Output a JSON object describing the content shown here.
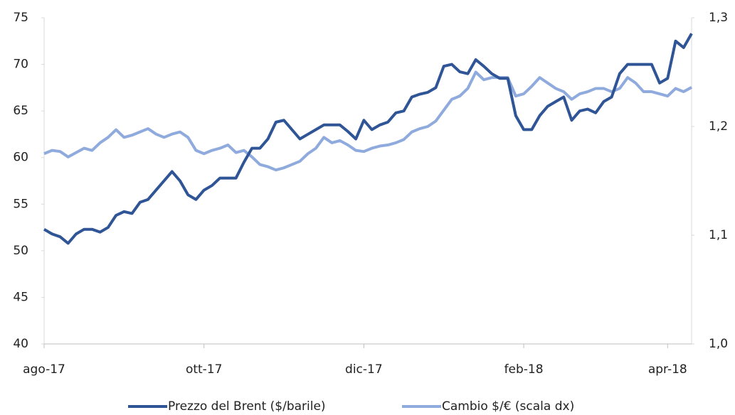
{
  "chart_data": {
    "type": "line",
    "categories": [
      "ago-17",
      null,
      null,
      null,
      null,
      null,
      null,
      null,
      null,
      null,
      null,
      null,
      null,
      null,
      null,
      null,
      null,
      null,
      null,
      null,
      "ott-17",
      null,
      null,
      null,
      null,
      null,
      null,
      null,
      null,
      null,
      null,
      null,
      null,
      null,
      null,
      null,
      null,
      null,
      null,
      null,
      "dic-17",
      null,
      null,
      null,
      null,
      null,
      null,
      null,
      null,
      null,
      null,
      null,
      null,
      null,
      null,
      null,
      null,
      null,
      null,
      null,
      "feb-18",
      null,
      null,
      null,
      null,
      null,
      null,
      null,
      null,
      null,
      null,
      null,
      null,
      null,
      null,
      null,
      null,
      null,
      "apr-18",
      null,
      null,
      null
    ],
    "series": [
      {
        "name": "Prezzo del Brent ($/barile)",
        "color": "#2f5597",
        "values": [
          52.3,
          51.8,
          51.5,
          50.8,
          51.8,
          52.3,
          52.3,
          52.0,
          52.5,
          53.8,
          54.2,
          54.0,
          55.2,
          55.5,
          56.5,
          57.5,
          58.5,
          57.5,
          56.0,
          55.5,
          56.5,
          57.0,
          57.8,
          57.8,
          57.8,
          59.5,
          61.0,
          61.0,
          62.0,
          63.8,
          64.0,
          63.0,
          62.0,
          62.5,
          63.0,
          63.5,
          63.5,
          63.5,
          62.8,
          62.0,
          64.0,
          63.0,
          63.5,
          63.8,
          64.8,
          65.0,
          66.5,
          66.8,
          67.0,
          67.5,
          69.8,
          70.0,
          69.2,
          69.0,
          70.5,
          69.8,
          69.0,
          68.5,
          68.5,
          64.5,
          63.0,
          63.0,
          64.5,
          65.5,
          66.0,
          66.5,
          64.0,
          65.0,
          65.2,
          64.8,
          66.0,
          66.5,
          69.0,
          70.0,
          70.0,
          70.0,
          70.0,
          68.0,
          68.5,
          72.5,
          71.8,
          73.3
        ]
      },
      {
        "name": "Cambio $/€ (scala dx)",
        "color": "#8faadc",
        "axis": "y2",
        "values": [
          1.175,
          1.178,
          1.177,
          1.172,
          1.176,
          1.18,
          1.178,
          1.185,
          1.19,
          1.197,
          1.19,
          1.192,
          1.195,
          1.198,
          1.193,
          1.19,
          1.193,
          1.195,
          1.19,
          1.178,
          1.175,
          1.178,
          1.18,
          1.183,
          1.176,
          1.178,
          1.172,
          1.165,
          1.163,
          1.16,
          1.162,
          1.165,
          1.168,
          1.175,
          1.18,
          1.19,
          1.185,
          1.187,
          1.183,
          1.178,
          1.177,
          1.18,
          1.182,
          1.183,
          1.185,
          1.188,
          1.195,
          1.198,
          1.2,
          1.205,
          1.215,
          1.225,
          1.228,
          1.235,
          1.25,
          1.243,
          1.245,
          1.245,
          1.245,
          1.228,
          1.23,
          1.237,
          1.245,
          1.24,
          1.235,
          1.232,
          1.225,
          1.23,
          1.232,
          1.235,
          1.235,
          1.232,
          1.235,
          1.245,
          1.24,
          1.232,
          1.232,
          1.23,
          1.228,
          1.235,
          1.232,
          1.236
        ]
      }
    ],
    "ylim": [
      40,
      75
    ],
    "yticks": [
      40,
      45,
      50,
      55,
      60,
      65,
      70,
      75
    ],
    "y2lim": [
      1.0,
      1.3
    ],
    "y2ticks": [
      {
        "value": 1.0,
        "label": "1,0"
      },
      {
        "value": 1.1,
        "label": "1,1"
      },
      {
        "value": 1.2,
        "label": "1,2"
      },
      {
        "value": 1.3,
        "label": "1,3"
      }
    ],
    "grid": false,
    "legend": "bottom"
  }
}
